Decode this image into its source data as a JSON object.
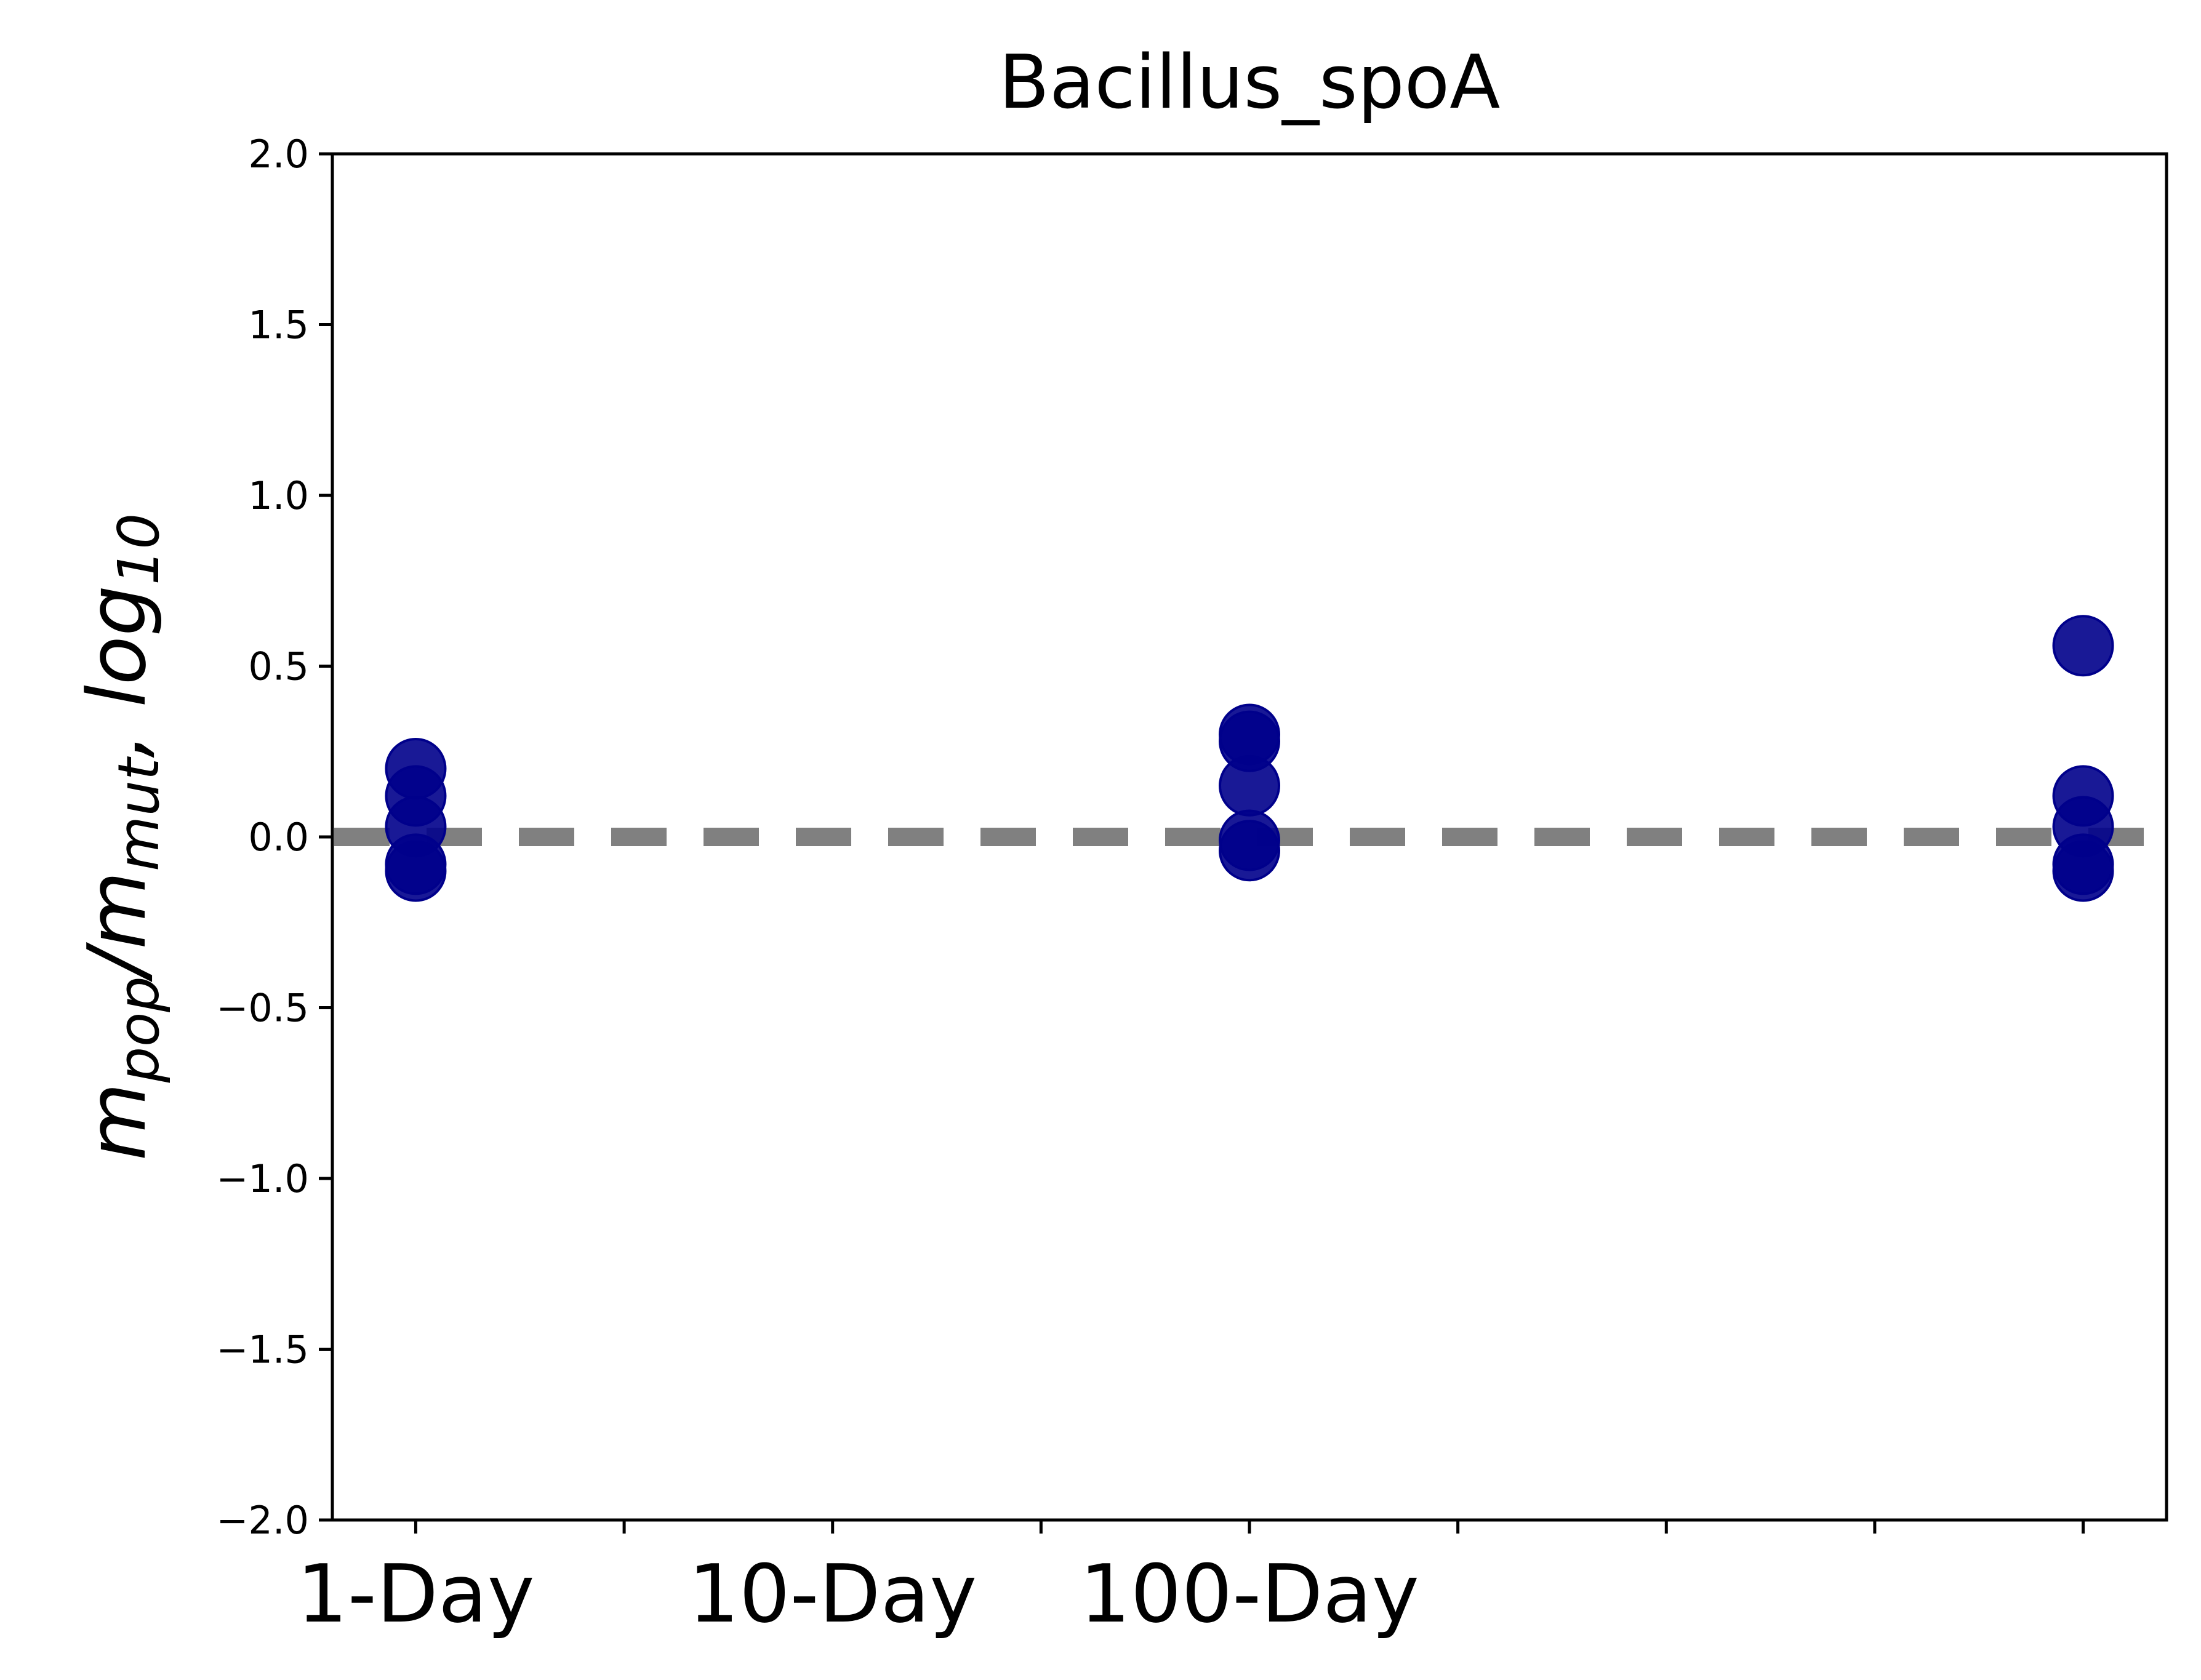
{
  "chart_data": {
    "type": "scatter",
    "title": "Bacillus_spoA",
    "ylabel": {
      "parts": [
        {
          "text": "m",
          "sub": false
        },
        {
          "text": "pop",
          "sub": true
        },
        {
          "text": "/m",
          "sub": false
        },
        {
          "text": "mut",
          "sub": true
        },
        {
          "text": ",  log",
          "sub": false
        },
        {
          "text": "10",
          "sub": true
        }
      ]
    },
    "xlabel": "",
    "x_ticks": [
      {
        "pos": 0,
        "label": "1-Day"
      },
      {
        "pos": 1,
        "label": ""
      },
      {
        "pos": 2,
        "label": "10-Day"
      },
      {
        "pos": 3,
        "label": ""
      },
      {
        "pos": 4,
        "label": "100-Day"
      },
      {
        "pos": 5,
        "label": ""
      },
      {
        "pos": 6,
        "label": ""
      },
      {
        "pos": 7,
        "label": ""
      },
      {
        "pos": 8,
        "label": ""
      }
    ],
    "xlim": [
      -0.4,
      8.4
    ],
    "ylim": [
      -2.0,
      2.0
    ],
    "y_ticks": [
      {
        "value": 2.0,
        "label": "2.0"
      },
      {
        "value": 1.5,
        "label": "1.5"
      },
      {
        "value": 1.0,
        "label": "1.0"
      },
      {
        "value": 0.5,
        "label": "0.5"
      },
      {
        "value": 0.0,
        "label": "0.0"
      },
      {
        "value": -0.5,
        "label": "−0.5"
      },
      {
        "value": -1.0,
        "label": "−1.0"
      },
      {
        "value": -1.5,
        "label": "−1.5"
      },
      {
        "value": -2.0,
        "label": "−2.0"
      }
    ],
    "reference_line": {
      "y": 0.0,
      "color": "#808080",
      "style": "dashed"
    },
    "grid": false,
    "series": [
      {
        "color": "#00008b",
        "points": [
          {
            "x": 0,
            "y": 0.2
          },
          {
            "x": 0,
            "y": 0.12
          },
          {
            "x": 0,
            "y": 0.03
          },
          {
            "x": 0,
            "y": -0.08
          },
          {
            "x": 0,
            "y": -0.1
          },
          {
            "x": 4,
            "y": 0.3
          },
          {
            "x": 4,
            "y": 0.28
          },
          {
            "x": 4,
            "y": 0.15
          },
          {
            "x": 4,
            "y": -0.01
          },
          {
            "x": 4,
            "y": -0.04
          },
          {
            "x": 8,
            "y": 0.56
          },
          {
            "x": 8,
            "y": 0.12
          },
          {
            "x": 8,
            "y": 0.03
          },
          {
            "x": 8,
            "y": -0.08
          },
          {
            "x": 8,
            "y": -0.1
          }
        ]
      }
    ]
  }
}
